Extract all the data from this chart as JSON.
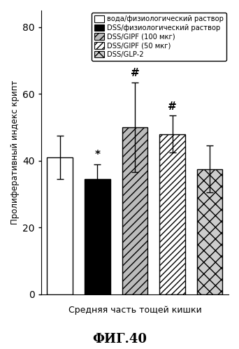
{
  "values": [
    41.0,
    34.5,
    50.0,
    48.0,
    37.5
  ],
  "errors": [
    6.5,
    4.5,
    13.5,
    5.5,
    7.0
  ],
  "annotations": [
    "",
    "*",
    "#",
    "#",
    ""
  ],
  "legend_labels": [
    "вода/физиологический раствор",
    "DSS/физиологический раствор",
    "DSS/GIPF (100 мкг)",
    "DSS/GIPF (50 мкг)",
    "DSS/GLP-2"
  ],
  "ylabel": "Пролиферативный индекс крипт",
  "xlabel": "Средняя часть тощей кишки",
  "title": "ФИГ.40",
  "ylim": [
    0,
    85
  ],
  "yticks": [
    0,
    20,
    40,
    60,
    80
  ],
  "bar_face_colors": [
    "white",
    "black",
    "#c8c8c8",
    "white",
    "#d8d8d8"
  ],
  "hatch_list": [
    null,
    null,
    "//",
    "////",
    "xx"
  ],
  "background_color": "white"
}
